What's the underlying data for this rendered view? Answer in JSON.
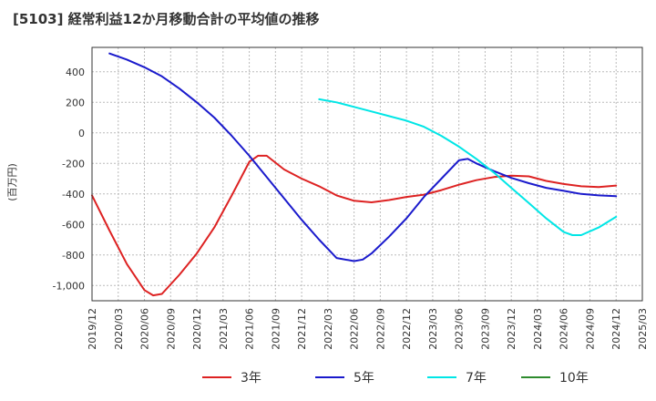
{
  "chart_data": {
    "type": "line",
    "title": "[5103]  経常利益12か月移動合計の平均値の推移",
    "ylabel": "(百万円)",
    "xlabel": "",
    "ylim": [
      -1100,
      560
    ],
    "xlim": [
      "2019-12",
      "2025-03"
    ],
    "yticks": [
      400,
      200,
      0,
      -200,
      -400,
      -600,
      -800,
      -1000
    ],
    "ytick_labels": [
      "400",
      "200",
      "0",
      "-200",
      "-400",
      "-600",
      "-800",
      "-1,000"
    ],
    "xtick_labels": [
      "2019/12",
      "2020/03",
      "2020/06",
      "2020/09",
      "2020/12",
      "2021/03",
      "2021/06",
      "2021/09",
      "2021/12",
      "2022/03",
      "2022/06",
      "2022/09",
      "2022/12",
      "2023/03",
      "2023/06",
      "2023/09",
      "2023/12",
      "2024/03",
      "2024/06",
      "2024/09",
      "2024/12",
      "2025/03"
    ],
    "grid": true,
    "legend_position": "bottom",
    "series": [
      {
        "name": "3年",
        "color": "#dd2222",
        "x": [
          "2019-12",
          "2020-02",
          "2020-04",
          "2020-06",
          "2020-07",
          "2020-08",
          "2020-10",
          "2020-12",
          "2021-02",
          "2021-04",
          "2021-06",
          "2021-07",
          "2021-08",
          "2021-10",
          "2021-12",
          "2022-02",
          "2022-04",
          "2022-06",
          "2022-08",
          "2022-10",
          "2022-12",
          "2023-02",
          "2023-04",
          "2023-06",
          "2023-08",
          "2023-10",
          "2023-12",
          "2024-02",
          "2024-04",
          "2024-06",
          "2024-08",
          "2024-10",
          "2024-12"
        ],
        "values": [
          -410,
          -640,
          -860,
          -1030,
          -1065,
          -1055,
          -930,
          -790,
          -620,
          -410,
          -190,
          -150,
          -150,
          -240,
          -300,
          -350,
          -410,
          -445,
          -455,
          -440,
          -420,
          -405,
          -375,
          -340,
          -310,
          -290,
          -280,
          -285,
          -315,
          -335,
          -350,
          -355,
          -345
        ]
      },
      {
        "name": "5年",
        "color": "#1a1acc",
        "x": [
          "2020-02",
          "2020-04",
          "2020-06",
          "2020-08",
          "2020-10",
          "2020-12",
          "2021-02",
          "2021-04",
          "2021-06",
          "2021-08",
          "2021-10",
          "2021-12",
          "2022-02",
          "2022-04",
          "2022-06",
          "2022-07",
          "2022-08",
          "2022-10",
          "2022-12",
          "2023-02",
          "2023-04",
          "2023-06",
          "2023-07",
          "2023-08",
          "2023-10",
          "2023-12",
          "2024-02",
          "2024-04",
          "2024-06",
          "2024-08",
          "2024-10",
          "2024-12"
        ],
        "values": [
          520,
          480,
          430,
          370,
          290,
          200,
          100,
          -20,
          -150,
          -290,
          -430,
          -570,
          -700,
          -820,
          -840,
          -830,
          -790,
          -680,
          -560,
          -420,
          -300,
          -180,
          -170,
          -200,
          -250,
          -295,
          -330,
          -360,
          -380,
          -400,
          -410,
          -415
        ]
      },
      {
        "name": "7年",
        "color": "#00e6e6",
        "x": [
          "2022-02",
          "2022-04",
          "2022-06",
          "2022-08",
          "2022-10",
          "2022-12",
          "2023-02",
          "2023-04",
          "2023-06",
          "2023-08",
          "2023-10",
          "2023-12",
          "2024-02",
          "2024-04",
          "2024-06",
          "2024-07",
          "2024-08",
          "2024-10",
          "2024-12"
        ],
        "values": [
          220,
          200,
          170,
          140,
          110,
          80,
          40,
          -20,
          -90,
          -170,
          -260,
          -360,
          -460,
          -560,
          -650,
          -670,
          -670,
          -620,
          -550
        ]
      },
      {
        "name": "10年",
        "color": "#2e8b2e",
        "x": [],
        "values": []
      }
    ]
  }
}
